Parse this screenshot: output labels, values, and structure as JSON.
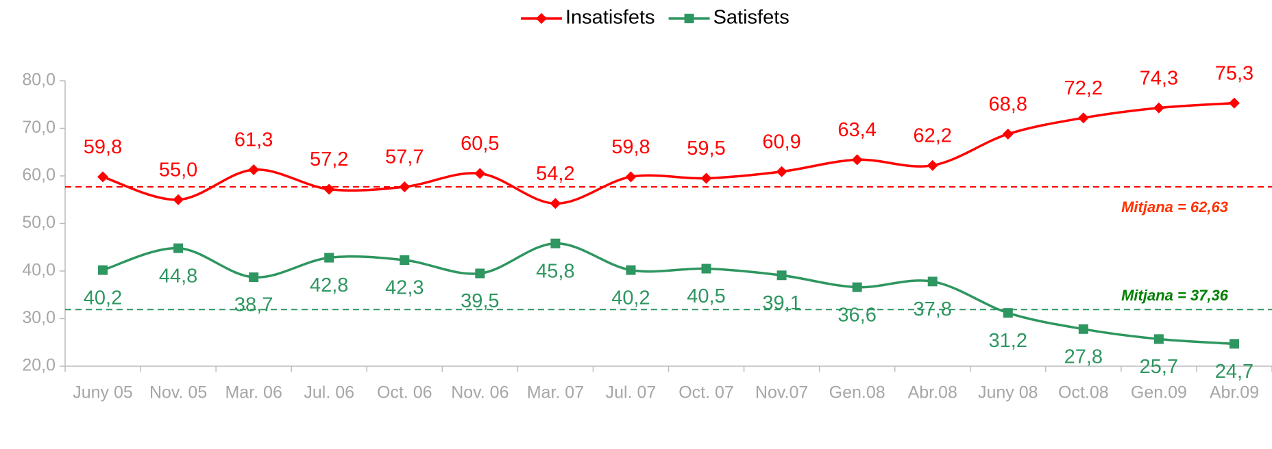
{
  "chart_data": {
    "type": "line",
    "categories": [
      "Juny 05",
      "Nov. 05",
      "Mar. 06",
      "Jul. 06",
      "Oct. 06",
      "Nov. 06",
      "Mar. 07",
      "Jul. 07",
      "Oct. 07",
      "Nov.07",
      "Gen.08",
      "Abr.08",
      "Juny 08",
      "Oct.08",
      "Gen.09",
      "Abr.09"
    ],
    "series": [
      {
        "name": "Insatisfets",
        "color": "#ff0000",
        "marker": "diamond",
        "values": [
          59.8,
          55.0,
          61.3,
          57.2,
          57.7,
          60.5,
          54.2,
          59.8,
          59.5,
          60.9,
          63.4,
          62.2,
          68.8,
          72.2,
          74.3,
          75.3
        ],
        "value_labels": [
          "59,8",
          "55,0",
          "61,3",
          "57,2",
          "57,7",
          "60,5",
          "54,2",
          "59,8",
          "59,5",
          "60,9",
          "63,4",
          "62,2",
          "68,8",
          "72,2",
          "74,3",
          "75,3"
        ]
      },
      {
        "name": "Satisfets",
        "color": "#2e9660",
        "marker": "square",
        "values": [
          40.2,
          44.8,
          38.7,
          42.8,
          42.3,
          39.5,
          45.8,
          40.2,
          40.5,
          39.1,
          36.6,
          37.8,
          31.2,
          27.8,
          25.7,
          24.7
        ],
        "value_labels": [
          "40,2",
          "44,8",
          "38,7",
          "42,8",
          "42,3",
          "39,5",
          "45,8",
          "40,2",
          "40,5",
          "39,1",
          "36,6",
          "37,8",
          "31,2",
          "27,8",
          "25,7",
          "24,7"
        ]
      }
    ],
    "ylim": [
      20,
      80
    ],
    "yticks": [
      {
        "value": 20,
        "label": "20,0"
      },
      {
        "value": 30,
        "label": "30,0"
      },
      {
        "value": 40,
        "label": "40,0"
      },
      {
        "value": 50,
        "label": "50,0"
      },
      {
        "value": 60,
        "label": "60,0"
      },
      {
        "value": 70,
        "label": "70,0"
      },
      {
        "value": 80,
        "label": "80,0"
      }
    ],
    "grid": false,
    "legend": "top",
    "reference_lines": [
      {
        "value": 57.7,
        "color": "#ff0000"
      },
      {
        "value": 31.9,
        "color": "#2e9660"
      }
    ],
    "annotations": [
      {
        "text": "Mitjana = 62,63",
        "color": "#ff3300"
      },
      {
        "text": "Mitjana = 37,36",
        "color": "#008000"
      }
    ]
  }
}
